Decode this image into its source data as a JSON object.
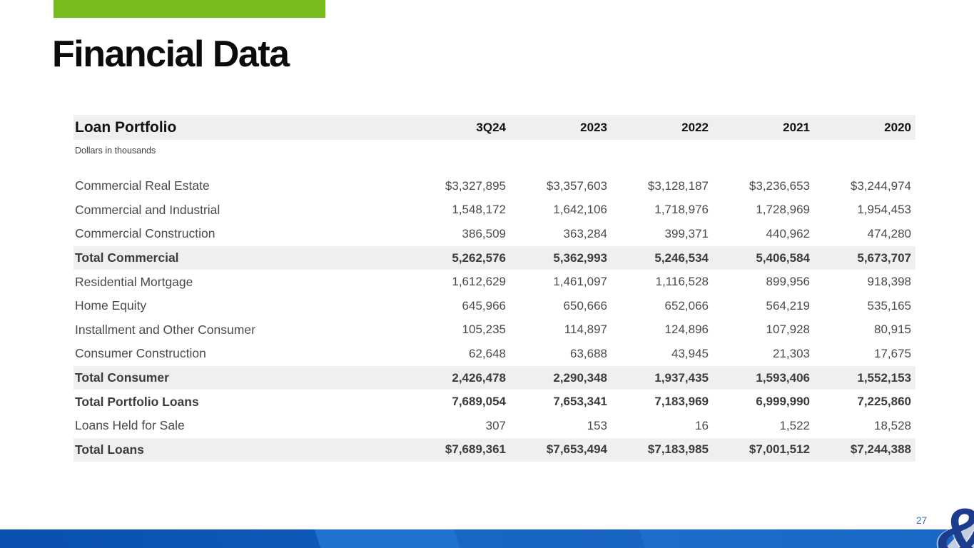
{
  "slide": {
    "title": "Financial Data",
    "page_number": "27",
    "logo_char": "&",
    "colors": {
      "accent_green": "#76BD1B",
      "footer_blue_dark": "#0A50AE",
      "footer_blue_light": "#2273D0",
      "logo_navy": "#1C3D8D",
      "row_shade_gray": "#F0EFEF",
      "page_number_blue": "#3A72B5"
    }
  },
  "table": {
    "title": "Loan Portfolio",
    "subtitle": "Dollars in thousands",
    "columns": [
      "3Q24",
      "2023",
      "2022",
      "2021",
      "2020"
    ],
    "rows": [
      {
        "label": "Commercial Real Estate",
        "values": [
          "$3,327,895",
          "$3,357,603",
          "$3,128,187",
          "$3,236,653",
          "$3,244,974"
        ],
        "bold": false,
        "shaded": false
      },
      {
        "label": "Commercial and Industrial",
        "values": [
          "1,548,172",
          "1,642,106",
          "1,718,976",
          "1,728,969",
          "1,954,453"
        ],
        "bold": false,
        "shaded": false
      },
      {
        "label": "Commercial Construction",
        "values": [
          "386,509",
          "363,284",
          "399,371",
          "440,962",
          "474,280"
        ],
        "bold": false,
        "shaded": false
      },
      {
        "label": "Total Commercial",
        "values": [
          "5,262,576",
          "5,362,993",
          "5,246,534",
          "5,406,584",
          "5,673,707"
        ],
        "bold": true,
        "shaded": true
      },
      {
        "label": "Residential Mortgage",
        "values": [
          "1,612,629",
          "1,461,097",
          "1,116,528",
          "899,956",
          "918,398"
        ],
        "bold": false,
        "shaded": false
      },
      {
        "label": "Home Equity",
        "values": [
          "645,966",
          "650,666",
          "652,066",
          "564,219",
          "535,165"
        ],
        "bold": false,
        "shaded": false
      },
      {
        "label": "Installment and Other Consumer",
        "values": [
          "105,235",
          "114,897",
          "124,896",
          "107,928",
          "80,915"
        ],
        "bold": false,
        "shaded": false
      },
      {
        "label": "Consumer Construction",
        "values": [
          "62,648",
          "63,688",
          "43,945",
          "21,303",
          "17,675"
        ],
        "bold": false,
        "shaded": false
      },
      {
        "label": "Total Consumer",
        "values": [
          "2,426,478",
          "2,290,348",
          "1,937,435",
          "1,593,406",
          "1,552,153"
        ],
        "bold": true,
        "shaded": true
      },
      {
        "label": "Total Portfolio Loans",
        "values": [
          "7,689,054",
          "7,653,341",
          "7,183,969",
          "6,999,990",
          "7,225,860"
        ],
        "bold": true,
        "shaded": false
      },
      {
        "label": "Loans Held for Sale",
        "values": [
          "307",
          "153",
          "16",
          "1,522",
          "18,528"
        ],
        "bold": false,
        "shaded": false
      },
      {
        "label": "Total Loans",
        "values": [
          "$7,689,361",
          "$7,653,494",
          "$7,183,985",
          "$7,001,512",
          "$7,244,388"
        ],
        "bold": true,
        "shaded": true
      }
    ]
  }
}
